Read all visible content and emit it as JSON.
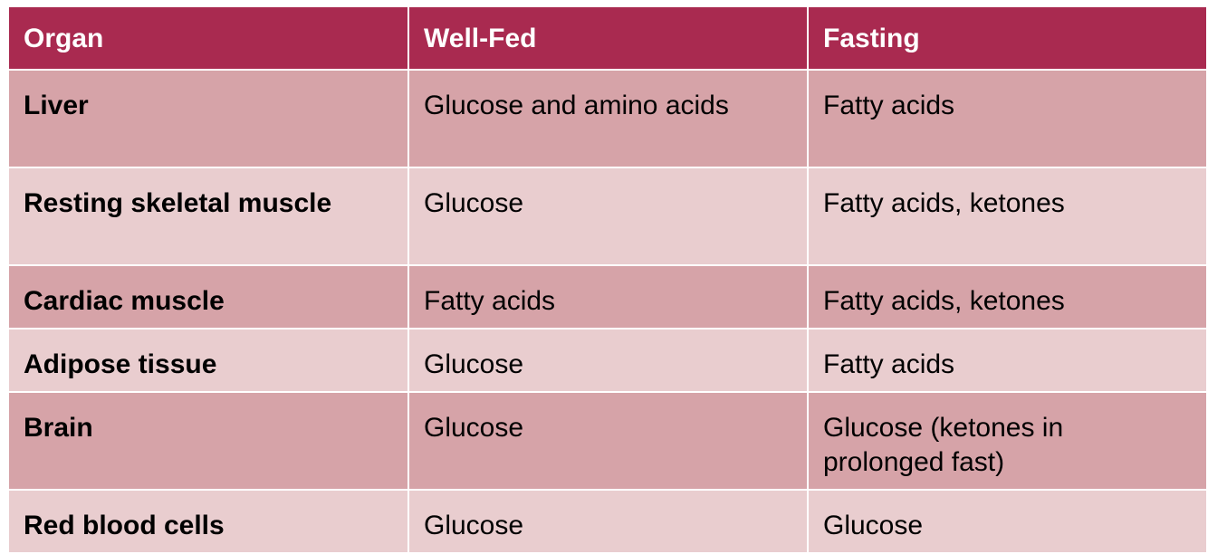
{
  "table": {
    "header": [
      "Organ",
      "Well-Fed",
      "Fasting"
    ],
    "rows": [
      [
        "Liver",
        "Glucose and amino acids",
        "Fatty acids"
      ],
      [
        "Resting skeletal muscle",
        "Glucose",
        "Fatty acids, ketones"
      ],
      [
        "Cardiac muscle",
        "Fatty acids",
        "Fatty acids, ketones"
      ],
      [
        "Adipose tissue",
        "Glucose",
        "Fatty acids"
      ],
      [
        "Brain",
        "Glucose",
        "Glucose (ketones in prolonged fast)"
      ],
      [
        "Red blood cells",
        "Glucose",
        "Glucose"
      ]
    ]
  }
}
